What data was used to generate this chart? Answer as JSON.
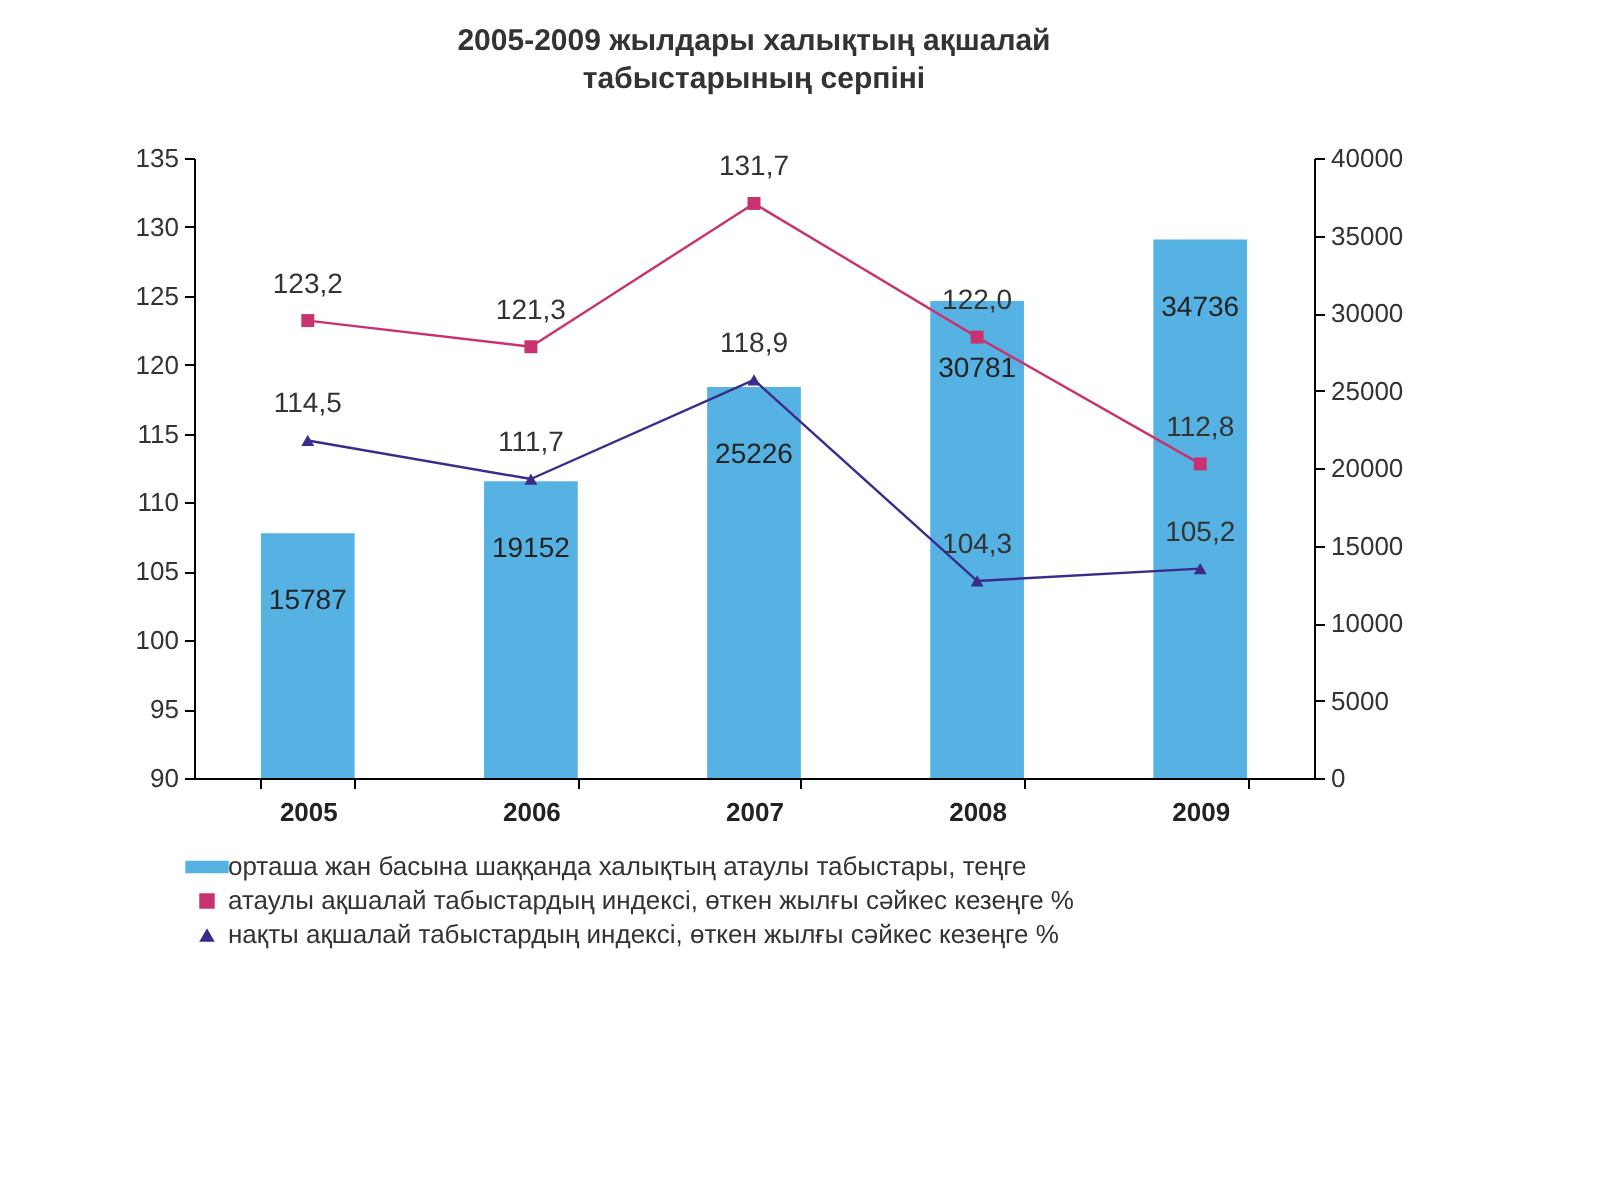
{
  "chart_data": {
    "type": "bar",
    "title": "2005-2009 жылдары халықтың ақшалай табыстарының серпіні",
    "categories": [
      "2005",
      "2006",
      "2007",
      "2008",
      "2009"
    ],
    "series": [
      {
        "name": "орташа жан басына шаққанда халықтың атаулы табыстары, теңге",
        "axis": "y2",
        "color": "#55b2e3",
        "values": [
          15787,
          19152,
          25226,
          30781,
          34736
        ],
        "value_labels": [
          "15787",
          "19152",
          "25226",
          "30781",
          "34736"
        ]
      },
      {
        "name": "атаулы ақшалай табыстардың индексі, өткен жылғы сәйкес кезеңге %",
        "type": "line",
        "color": "#c8336f",
        "marker": "square",
        "values": [
          123.2,
          121.3,
          131.7,
          122.0,
          112.8
        ],
        "value_labels": [
          "123,2",
          "121,3",
          "131,7",
          "122,0",
          "112,8"
        ]
      },
      {
        "name": "нақты ақшалай табыстардың индексі, өткен жылғы сәйкес кезеңге %",
        "type": "line",
        "color": "#3d2b8c",
        "marker": "triangle",
        "values": [
          114.5,
          111.7,
          118.9,
          104.3,
          105.2
        ],
        "value_labels": [
          "114,5",
          "111,7",
          "118,9",
          "104,3",
          "105,2"
        ]
      }
    ],
    "ylim": [
      90,
      135
    ],
    "yticks": [
      90,
      95,
      100,
      105,
      110,
      115,
      120,
      125,
      130,
      135
    ],
    "y2lim": [
      0,
      40000
    ],
    "y2ticks": [
      0,
      5000,
      10000,
      15000,
      20000,
      25000,
      30000,
      35000,
      40000
    ],
    "legend": "bottom"
  }
}
